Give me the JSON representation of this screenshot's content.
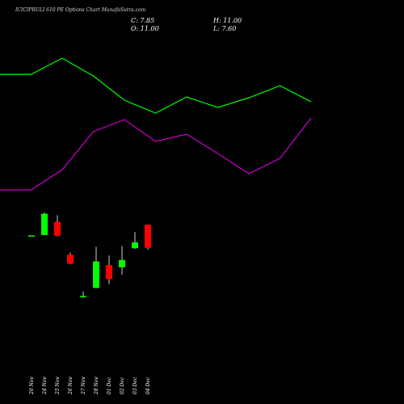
{
  "title": "ICICIPRULI 610 PE Options  Chart MunafaSutra.com",
  "ohlc": {
    "close_label": "C: 7.85",
    "high_label": "H: 11.00",
    "open_label": "O: 11.00",
    "low_label": "L: 7.60"
  },
  "colors": {
    "background": "#000000",
    "up": "#00ff00",
    "down": "#ff0000",
    "line1": "#00ff00",
    "line2": "#cc00cc",
    "wick": "#ffffff",
    "text": "#ffffff"
  },
  "chart_data": {
    "type": "candlestick",
    "title": "ICICIPRULI 610 PE Options  Chart MunafaSutra.com",
    "categories": [
      "20 Nov",
      "24 Nov",
      "25 Nov",
      "26 Nov",
      "27 Nov",
      "28 Nov",
      "01 Dec",
      "02 Dec",
      "03 Dec",
      "04 Dec"
    ],
    "ylim": [
      0,
      13
    ],
    "candles": [
      {
        "o": 9.5,
        "h": 9.5,
        "l": 9.45,
        "c": 9.55
      },
      {
        "o": 9.6,
        "h": 12.7,
        "l": 9.6,
        "c": 12.5
      },
      {
        "o": 11.4,
        "h": 12.3,
        "l": 9.4,
        "c": 9.5
      },
      {
        "o": 6.9,
        "h": 7.2,
        "l": 5.6,
        "c": 5.7
      },
      {
        "o": 1.2,
        "h": 1.9,
        "l": 1.0,
        "c": 1.3
      },
      {
        "o": 2.4,
        "h": 8.0,
        "l": 2.3,
        "c": 6.0
      },
      {
        "o": 5.5,
        "h": 6.8,
        "l": 2.9,
        "c": 3.6
      },
      {
        "o": 5.2,
        "h": 8.1,
        "l": 4.2,
        "c": 6.2
      },
      {
        "o": 7.8,
        "h": 10.0,
        "l": 7.7,
        "c": 8.6
      },
      {
        "o": 11.0,
        "h": 11.0,
        "l": 7.6,
        "c": 7.85
      }
    ],
    "line_series": [
      {
        "color": "#00ff00",
        "values": [
          92,
          92,
          72,
          94,
          124,
          140,
          120,
          133,
          121,
          106,
          126
        ]
      },
      {
        "color": "#cc00cc",
        "values": [
          235,
          235,
          210,
          163,
          148,
          175,
          166,
          190,
          215,
          196,
          146
        ]
      }
    ]
  }
}
